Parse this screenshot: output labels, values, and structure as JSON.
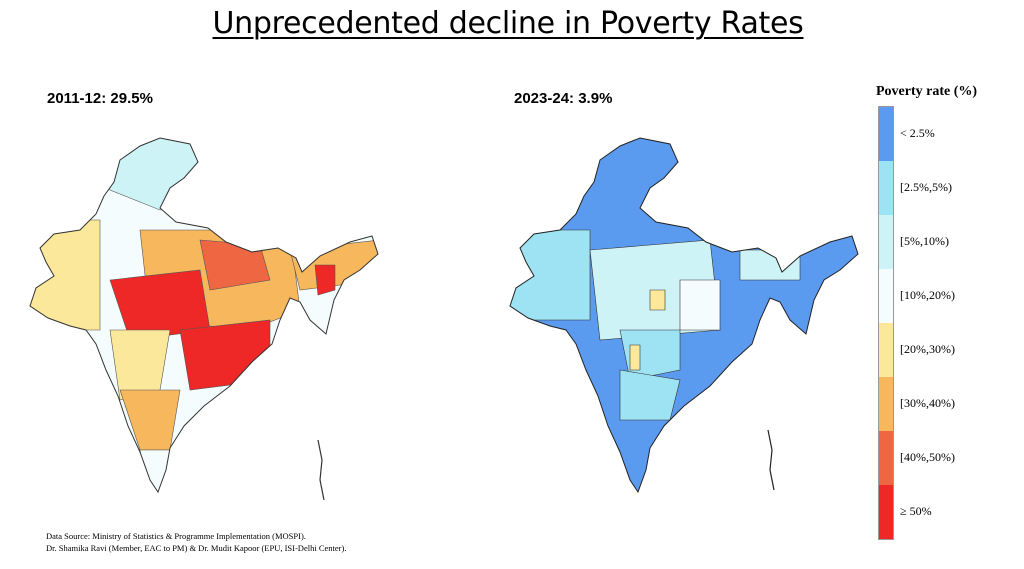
{
  "title": "Unprecedented decline in Poverty Rates",
  "maps": [
    {
      "label": "2011-12: 29.5%"
    },
    {
      "label": "2023-24: 3.9%"
    }
  ],
  "legend": {
    "title": "Poverty rate (%)",
    "items": [
      {
        "label": "< 2.5%",
        "color": "#5b9bef"
      },
      {
        "label": "[2.5%,5%)",
        "color": "#9ee3f3"
      },
      {
        "label": "[5%,10%)",
        "color": "#cdf3f7"
      },
      {
        "label": "[10%,20%)",
        "color": "#f5fcfd"
      },
      {
        "label": "[20%,30%)",
        "color": "#fbe89a"
      },
      {
        "label": "[30%,40%)",
        "color": "#f7b75d"
      },
      {
        "label": "[40%,50%)",
        "color": "#ef6642"
      },
      {
        "label": "≥ 50%",
        "color": "#ee2727"
      }
    ]
  },
  "source": {
    "line1": "Data Source: Ministry of Statistics & Programme Implementation (MOSPI).",
    "line2": "Dr. Shamika Ravi (Member, EAC to PM) & Dr. Mudit Kapoor (EPU, ISI-Delhi Center)."
  }
}
